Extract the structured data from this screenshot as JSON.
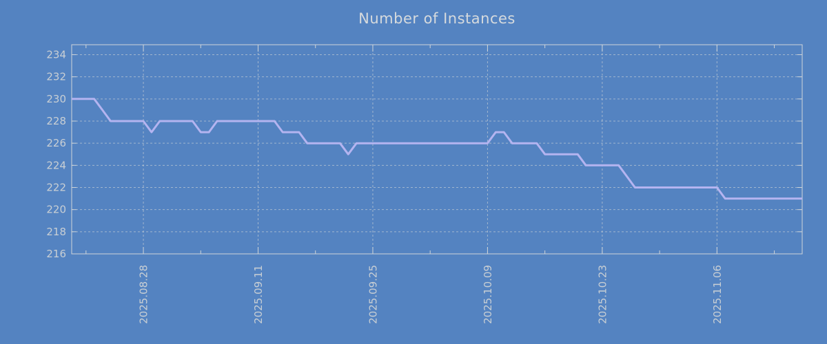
{
  "page": {
    "background_color": "#5483C1"
  },
  "chart_data": {
    "type": "line",
    "title": "Number of Instances",
    "grid": true,
    "legend": "none",
    "series": [
      {
        "name": "instances",
        "color": "#B4B4F0",
        "start_date": "2025-08-19",
        "values": [
          230,
          230,
          230,
          230,
          229,
          228,
          228,
          228,
          228,
          228,
          227,
          228,
          228,
          228,
          228,
          228,
          227,
          227,
          228,
          228,
          228,
          228,
          228,
          228,
          228,
          228,
          227,
          227,
          227,
          226,
          226,
          226,
          226,
          226,
          225,
          226,
          226,
          226,
          226,
          226,
          226,
          226,
          226,
          226,
          226,
          226,
          226,
          226,
          226,
          226,
          226,
          226,
          227,
          227,
          226,
          226,
          226,
          226,
          225,
          225,
          225,
          225,
          225,
          224,
          224,
          224,
          224,
          224,
          223,
          222,
          222,
          222,
          222,
          222,
          222,
          222,
          222,
          222,
          222,
          222,
          221,
          221,
          221,
          221,
          221,
          221,
          221,
          221,
          221,
          221,
          221
        ]
      }
    ],
    "x_axis": {
      "tick_labels": [
        "2025.08.28",
        "2025.09.11",
        "2025.09.25",
        "2025.10.09",
        "2025.10.23",
        "2025.11.06"
      ],
      "major_tick_days": [
        9,
        23,
        37,
        51,
        65,
        79
      ],
      "minor_tick_days": [
        2,
        16,
        30,
        44,
        58,
        72,
        86
      ],
      "xlim_days": [
        0.25,
        89.4
      ]
    },
    "y_axis": {
      "tick_values": [
        216,
        218,
        220,
        222,
        224,
        226,
        228,
        230,
        232,
        234
      ],
      "ylim": [
        216,
        234.9
      ]
    },
    "colors": {
      "background": "#5483C1",
      "line": "#B4B4F0",
      "grid": "#CCD2D6",
      "border": "#CFD5D9",
      "tick_text": "#C9CFD4",
      "title_text": "#D6DADD"
    }
  }
}
